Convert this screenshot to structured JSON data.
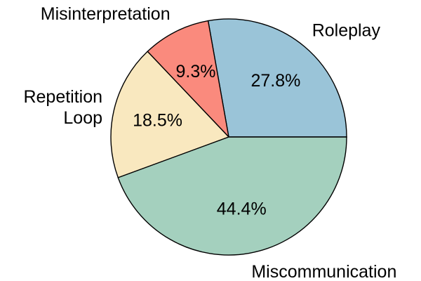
{
  "chart_data": {
    "type": "pie",
    "title": "",
    "start_angle_deg": 0,
    "direction": "counterclockwise",
    "slices": [
      {
        "label": "Roleplay",
        "label_lines": [
          "Roleplay"
        ],
        "value": 27.8,
        "pct_label": "27.8%",
        "color": "#9AC4D8"
      },
      {
        "label": "Misinterpretation",
        "label_lines": [
          "Misinterpretation"
        ],
        "value": 9.3,
        "pct_label": "9.3%",
        "color": "#FA8A7D"
      },
      {
        "label": "Repetition Loop",
        "label_lines": [
          "Repetition",
          "Loop"
        ],
        "value": 18.5,
        "pct_label": "18.5%",
        "color": "#F9E8BF"
      },
      {
        "label": "Miscommunication",
        "label_lines": [
          "Miscommunication"
        ],
        "value": 44.4,
        "pct_label": "44.4%",
        "color": "#A4D0BE"
      }
    ]
  }
}
